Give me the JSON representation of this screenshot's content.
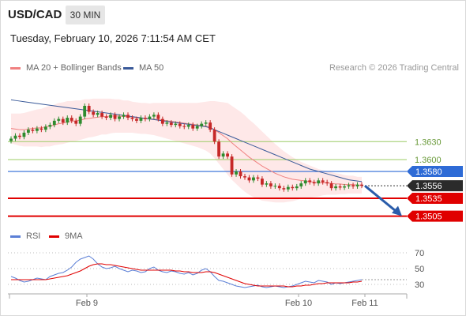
{
  "header": {
    "pair": "USD/CAD",
    "timeframe": "30 MIN",
    "datetime": "Tuesday, February 10, 2026 7:11:54 AM CET"
  },
  "legend": {
    "ma20_label": "MA 20 + Bollinger Bands",
    "ma50_label": "MA 50",
    "credit": "Research © 2026 Trading Central",
    "rsi_label": "RSI",
    "rsi_ma_label": "9MA"
  },
  "colors": {
    "ma20": "#f08080",
    "ma50": "#3a5a99",
    "band": "#fde0e0",
    "bull": "#2e8b2e",
    "bear": "#c62828",
    "support": "#e00000",
    "resistance": "#9ccc65",
    "pivot": "#2e6bd6",
    "price_tag": "#2b2b2b",
    "rsi": "#5b7fd6",
    "rsi_ma": "#e00000",
    "arrow": "#2a5caa"
  },
  "chart_data": [
    {
      "type": "candlestick",
      "title": "USD/CAD",
      "x_ticks": [
        "Feb 9",
        "Feb 10",
        "Feb 11"
      ],
      "ylim": [
        1.349,
        1.3735
      ],
      "levels": [
        {
          "label": "1.3630",
          "value": 1.363,
          "kind": "resistance"
        },
        {
          "label": "1.3600",
          "value": 1.36,
          "kind": "resistance"
        },
        {
          "label": "1.3580",
          "value": 1.358,
          "kind": "pivot"
        },
        {
          "label": "1.3535",
          "value": 1.3535,
          "kind": "support"
        },
        {
          "label": "1.3505",
          "value": 1.3505,
          "kind": "support"
        }
      ],
      "last_price": {
        "label": "1.3556",
        "value": 1.3556
      },
      "closes": [
        1.3635,
        1.364,
        1.3638,
        1.3645,
        1.365,
        1.3648,
        1.3652,
        1.365,
        1.3655,
        1.3658,
        1.3665,
        1.3668,
        1.3662,
        1.367,
        1.3665,
        1.366,
        1.3672,
        1.369,
        1.368,
        1.3675,
        1.3678,
        1.3672,
        1.367,
        1.3675,
        1.3668,
        1.3672,
        1.3675,
        1.367,
        1.3668,
        1.3665,
        1.367,
        1.3668,
        1.3672,
        1.3675,
        1.3668,
        1.366,
        1.3662,
        1.3658,
        1.366,
        1.3656,
        1.3655,
        1.3658,
        1.3652,
        1.3656,
        1.366,
        1.3662,
        1.365,
        1.363,
        1.3605,
        1.361,
        1.3605,
        1.3575,
        1.358,
        1.3572,
        1.357,
        1.3565,
        1.357,
        1.3568,
        1.3558,
        1.356,
        1.3555,
        1.3556,
        1.3552,
        1.355,
        1.3554,
        1.3552,
        1.3555,
        1.356,
        1.3565,
        1.3562,
        1.356,
        1.3565,
        1.3562,
        1.356,
        1.3552,
        1.3555,
        1.3553,
        1.3555,
        1.3557,
        1.3555,
        1.3558,
        1.3556
      ],
      "ma20": [
        1.3652,
        1.3651,
        1.365,
        1.365,
        1.3651,
        1.3652,
        1.3653,
        1.3653,
        1.3655,
        1.3656,
        1.3658,
        1.366,
        1.3661,
        1.3663,
        1.3664,
        1.3665,
        1.3666,
        1.3668,
        1.3669,
        1.367,
        1.3671,
        1.3672,
        1.3672,
        1.3673,
        1.3673,
        1.3673,
        1.3672,
        1.3672,
        1.3671,
        1.367,
        1.3669,
        1.3669,
        1.3668,
        1.3668,
        1.3667,
        1.3666,
        1.3665,
        1.3664,
        1.3663,
        1.3662,
        1.3661,
        1.366,
        1.3659,
        1.3658,
        1.3657,
        1.3656,
        1.3654,
        1.365,
        1.3645,
        1.364,
        1.3635,
        1.3628,
        1.3622,
        1.3616,
        1.361,
        1.3604,
        1.3599,
        1.3594,
        1.3589,
        1.3585,
        1.3581,
        1.3577,
        1.3574,
        1.3571,
        1.3569,
        1.3567,
        1.3566,
        1.3565,
        1.3564,
        1.3563,
        1.3562,
        1.3561,
        1.3561,
        1.3561,
        1.356,
        1.3559,
        1.3559,
        1.3558,
        1.3558,
        1.3558,
        1.3557,
        1.3557
      ],
      "ma50": [
        1.37,
        1.3699,
        1.3698,
        1.3697,
        1.3696,
        1.3695,
        1.3694,
        1.3693,
        1.3692,
        1.3691,
        1.369,
        1.3689,
        1.3688,
        1.3687,
        1.3686,
        1.3685,
        1.3684,
        1.3683,
        1.3682,
        1.3681,
        1.368,
        1.3679,
        1.3678,
        1.3677,
        1.3676,
        1.3675,
        1.3674,
        1.3673,
        1.3672,
        1.3671,
        1.367,
        1.3669,
        1.3668,
        1.3667,
        1.3666,
        1.3665,
        1.3664,
        1.3663,
        1.3662,
        1.3661,
        1.366,
        1.3659,
        1.3658,
        1.3657,
        1.3656,
        1.3655,
        1.3653,
        1.365,
        1.3647,
        1.3644,
        1.3641,
        1.3638,
        1.3635,
        1.3632,
        1.3629,
        1.3626,
        1.3623,
        1.362,
        1.3617,
        1.3614,
        1.3611,
        1.3608,
        1.3605,
        1.3602,
        1.3599,
        1.3596,
        1.3593,
        1.359,
        1.3587,
        1.3584,
        1.3582,
        1.358,
        1.3578,
        1.3576,
        1.3574,
        1.3572,
        1.357,
        1.3568,
        1.3566,
        1.3565,
        1.3564,
        1.3563
      ],
      "band_width": [
        0.0025,
        0.0026,
        0.0027,
        0.0028,
        0.0029,
        0.003,
        0.0031,
        0.0032,
        0.0033,
        0.0034,
        0.0034,
        0.0035,
        0.0035,
        0.0035,
        0.0034,
        0.0034,
        0.0033,
        0.0033,
        0.0032,
        0.0032,
        0.0031,
        0.003,
        0.003,
        0.0029,
        0.0028,
        0.0028,
        0.0027,
        0.0027,
        0.0026,
        0.0026,
        0.0026,
        0.0026,
        0.0026,
        0.0027,
        0.0028,
        0.0029,
        0.003,
        0.0031,
        0.0032,
        0.0033,
        0.0034,
        0.0035,
        0.0036,
        0.0037,
        0.0039,
        0.0041,
        0.0044,
        0.0048,
        0.0052,
        0.0056,
        0.006,
        0.0062,
        0.0063,
        0.0064,
        0.0064,
        0.0063,
        0.0062,
        0.006,
        0.0058,
        0.0055,
        0.0052,
        0.0049,
        0.0046,
        0.0043,
        0.004,
        0.0037,
        0.0034,
        0.0031,
        0.0029,
        0.0027,
        0.0025,
        0.0023,
        0.0021,
        0.002,
        0.0019,
        0.0018,
        0.0017,
        0.0016,
        0.0015,
        0.0015,
        0.0014,
        0.0014
      ],
      "projection": {
        "from": 1.3556,
        "to": 1.3505
      }
    },
    {
      "type": "line",
      "title": "RSI",
      "ylim": [
        20,
        80
      ],
      "y_ticks": [
        70,
        50,
        30
      ],
      "series": [
        {
          "name": "RSI",
          "values": [
            40,
            38,
            35,
            33,
            34,
            36,
            38,
            37,
            36,
            40,
            42,
            44,
            45,
            48,
            52,
            58,
            62,
            64,
            66,
            62,
            56,
            52,
            50,
            51,
            53,
            50,
            48,
            46,
            48,
            47,
            45,
            46,
            50,
            52,
            48,
            46,
            45,
            47,
            46,
            44,
            43,
            45,
            42,
            44,
            48,
            50,
            46,
            40,
            35,
            34,
            32,
            30,
            28,
            27,
            26,
            27,
            28,
            29,
            27,
            26,
            27,
            28,
            27,
            26,
            27,
            28,
            30,
            32,
            34,
            33,
            32,
            35,
            34,
            33,
            30,
            32,
            31,
            32,
            33,
            34,
            35,
            36
          ]
        },
        {
          "name": "9MA",
          "values": [
            36,
            36,
            36,
            36,
            36,
            36,
            36,
            36,
            36,
            37,
            38,
            39,
            40,
            41,
            43,
            45,
            47,
            50,
            53,
            55,
            56,
            56,
            55,
            55,
            54,
            53,
            52,
            51,
            50,
            49,
            48,
            48,
            48,
            48,
            48,
            48,
            48,
            48,
            47,
            47,
            46,
            46,
            45,
            45,
            45,
            46,
            46,
            45,
            43,
            41,
            39,
            37,
            35,
            33,
            31,
            30,
            29,
            28,
            28,
            28,
            28,
            28,
            28,
            28,
            27,
            27,
            28,
            28,
            29,
            29,
            30,
            31,
            31,
            32,
            32,
            32,
            32,
            32,
            32,
            33,
            33,
            34
          ]
        }
      ]
    }
  ]
}
